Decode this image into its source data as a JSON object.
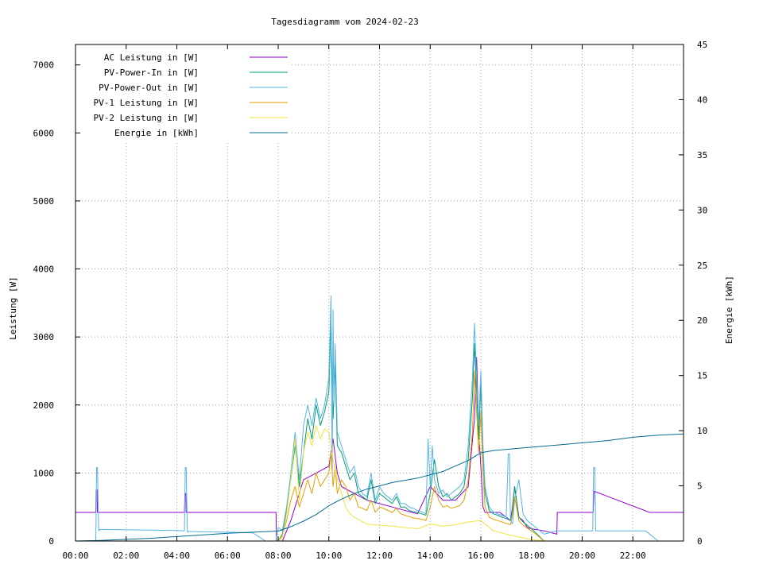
{
  "chart_data": {
    "type": "line",
    "title": "Tagesdiagramm vom 2024-02-23",
    "ylabel": "Leistung [W]",
    "y2label": "Energie [kWh]",
    "xlim": [
      "00:00",
      "24:00"
    ],
    "ylim": [
      0,
      7300
    ],
    "y2lim": [
      0,
      45
    ],
    "grid": true,
    "legend_position": "top-left",
    "x_ticks": [
      "00:00",
      "02:00",
      "04:00",
      "06:00",
      "08:00",
      "10:00",
      "12:00",
      "14:00",
      "16:00",
      "18:00",
      "20:00",
      "22:00"
    ],
    "y_ticks": [
      "0",
      "1000",
      "2000",
      "3000",
      "4000",
      "5000",
      "6000",
      "7000"
    ],
    "y2_ticks": [
      "0",
      "5",
      "10",
      "15",
      "20",
      "25",
      "30",
      "35",
      "40",
      "45"
    ],
    "series": [
      {
        "name": "AC Leistung in [W]",
        "color": "#9400d3",
        "axis": "left",
        "x": [
          "00:00",
          "00:48",
          "00:49",
          "00:51",
          "00:52",
          "03:00",
          "03:01",
          "04:18",
          "04:19",
          "04:21",
          "04:22",
          "06:30",
          "06:31",
          "07:55",
          "07:56",
          "08:10",
          "08:30",
          "09:00",
          "09:30",
          "10:00",
          "10:10",
          "10:20",
          "10:30",
          "11:00",
          "11:30",
          "12:00",
          "12:30",
          "13:00",
          "13:30",
          "14:00",
          "14:30",
          "15:00",
          "15:30",
          "15:45",
          "15:50",
          "15:55",
          "16:00",
          "16:05",
          "16:10",
          "16:20",
          "16:30",
          "16:45",
          "17:00",
          "17:10",
          "17:15",
          "17:20",
          "17:30",
          "17:40",
          "17:45",
          "17:50",
          "18:00",
          "18:30",
          "19:00",
          "19:01",
          "20:25",
          "20:26",
          "20:28",
          "20:29",
          "22:40",
          "22:41",
          "24:00"
        ],
        "y": [
          420,
          420,
          750,
          750,
          420,
          420,
          420,
          420,
          700,
          700,
          420,
          420,
          420,
          420,
          0,
          0,
          300,
          900,
          1000,
          1100,
          1500,
          1000,
          800,
          700,
          600,
          550,
          500,
          450,
          400,
          800,
          600,
          600,
          800,
          1800,
          2700,
          1600,
          1100,
          500,
          420,
          420,
          420,
          420,
          350,
          300,
          500,
          800,
          350,
          300,
          250,
          200,
          180,
          150,
          100,
          420,
          420,
          420,
          730,
          730,
          420,
          420,
          420
        ]
      },
      {
        "name": "PV-Power-In in [W]",
        "color": "#009e73",
        "axis": "left",
        "x": [
          "08:00",
          "08:10",
          "08:20",
          "08:30",
          "08:40",
          "08:50",
          "09:00",
          "09:10",
          "09:20",
          "09:30",
          "09:40",
          "09:50",
          "10:00",
          "10:05",
          "10:10",
          "10:15",
          "10:20",
          "10:30",
          "10:40",
          "10:50",
          "11:00",
          "11:10",
          "11:20",
          "11:30",
          "11:40",
          "11:50",
          "12:00",
          "12:10",
          "12:20",
          "12:30",
          "12:40",
          "12:50",
          "13:00",
          "13:10",
          "13:20",
          "13:30",
          "13:40",
          "13:50",
          "14:00",
          "14:10",
          "14:20",
          "14:30",
          "14:40",
          "14:50",
          "15:00",
          "15:10",
          "15:20",
          "15:30",
          "15:40",
          "15:45",
          "15:50",
          "15:55",
          "16:00",
          "16:05",
          "16:10",
          "16:20",
          "16:30",
          "16:40",
          "16:50",
          "17:00",
          "17:10",
          "17:15",
          "17:20",
          "17:30",
          "17:40",
          "17:50",
          "18:00",
          "18:10",
          "18:20",
          "18:30"
        ],
        "y": [
          0,
          100,
          450,
          900,
          1400,
          800,
          1300,
          1800,
          1500,
          2000,
          1700,
          1900,
          2200,
          3200,
          1800,
          2600,
          1400,
          1300,
          1100,
          900,
          1000,
          700,
          650,
          600,
          900,
          550,
          700,
          650,
          600,
          550,
          650,
          500,
          500,
          450,
          430,
          420,
          400,
          380,
          700,
          1200,
          800,
          650,
          700,
          600,
          650,
          700,
          800,
          1200,
          2100,
          2900,
          2200,
          1500,
          2300,
          1300,
          700,
          450,
          400,
          380,
          350,
          330,
          300,
          450,
          800,
          350,
          280,
          230,
          180,
          120,
          60,
          0
        ]
      },
      {
        "name": "PV-Power-Out in [W]",
        "color": "#56b4e9",
        "axis": "left",
        "x": [
          "00:00",
          "00:48",
          "00:50",
          "00:52",
          "00:55",
          "00:57",
          "01:00",
          "02:00",
          "03:00",
          "04:00",
          "04:18",
          "04:20",
          "04:22",
          "04:25",
          "04:27",
          "04:30",
          "05:00",
          "06:00",
          "06:30",
          "07:00",
          "07:30",
          "07:55",
          "08:00",
          "08:10",
          "08:20",
          "08:30",
          "08:40",
          "08:50",
          "09:00",
          "09:10",
          "09:20",
          "09:30",
          "09:40",
          "09:50",
          "10:00",
          "10:05",
          "10:08",
          "10:10",
          "10:12",
          "10:15",
          "10:20",
          "10:30",
          "10:40",
          "10:50",
          "11:00",
          "11:10",
          "11:20",
          "11:30",
          "11:40",
          "11:50",
          "12:00",
          "12:10",
          "12:20",
          "12:30",
          "12:40",
          "12:50",
          "13:00",
          "13:10",
          "13:20",
          "13:30",
          "13:40",
          "13:50",
          "13:55",
          "14:00",
          "14:05",
          "14:10",
          "14:20",
          "14:30",
          "14:40",
          "14:50",
          "15:00",
          "15:10",
          "15:20",
          "15:30",
          "15:40",
          "15:45",
          "15:50",
          "15:55",
          "16:00",
          "16:05",
          "16:10",
          "16:20",
          "16:30",
          "16:40",
          "16:50",
          "17:00",
          "17:05",
          "17:08",
          "17:10",
          "17:15",
          "17:20",
          "17:30",
          "17:40",
          "17:50",
          "18:00",
          "18:10",
          "18:20",
          "18:30",
          "19:00",
          "19:30",
          "20:00",
          "20:25",
          "20:27",
          "20:30",
          "20:32",
          "20:35",
          "21:00",
          "21:30",
          "22:00",
          "22:30",
          "23:00",
          "24:00"
        ],
        "y": [
          0,
          0,
          1080,
          1080,
          150,
          170,
          170,
          165,
          160,
          155,
          150,
          1080,
          1080,
          130,
          140,
          140,
          135,
          130,
          125,
          120,
          0,
          0,
          200,
          150,
          500,
          1000,
          1600,
          900,
          1700,
          2000,
          1700,
          2100,
          1800,
          2000,
          2400,
          3600,
          1000,
          3400,
          2000,
          2900,
          1600,
          1400,
          1200,
          1000,
          1100,
          800,
          700,
          650,
          1000,
          600,
          800,
          700,
          650,
          600,
          700,
          550,
          550,
          500,
          480,
          450,
          430,
          400,
          1500,
          800,
          1400,
          900,
          700,
          750,
          650,
          700,
          750,
          800,
          900,
          1400,
          2400,
          3200,
          2400,
          1700,
          2500,
          1400,
          800,
          500,
          430,
          400,
          380,
          350,
          1280,
          1280,
          300,
          250,
          600,
          900,
          400,
          300,
          250,
          200,
          150,
          100,
          150,
          150,
          150,
          150,
          1080,
          1080,
          150,
          150,
          150,
          150,
          150,
          150,
          0,
          0
        ]
      },
      {
        "name": "PV-1 Leistung in [W]",
        "color": "#e69f00",
        "axis": "left",
        "x": [
          "08:00",
          "08:10",
          "08:20",
          "08:30",
          "08:40",
          "08:50",
          "09:00",
          "09:10",
          "09:20",
          "09:30",
          "09:40",
          "09:50",
          "10:00",
          "10:05",
          "10:10",
          "10:15",
          "10:20",
          "10:30",
          "10:40",
          "10:50",
          "11:00",
          "11:10",
          "11:20",
          "11:30",
          "11:40",
          "11:50",
          "12:00",
          "12:10",
          "12:20",
          "12:30",
          "12:40",
          "12:50",
          "13:00",
          "13:10",
          "13:20",
          "13:30",
          "13:40",
          "13:50",
          "14:00",
          "14:10",
          "14:20",
          "14:30",
          "14:40",
          "14:50",
          "15:00",
          "15:10",
          "15:20",
          "15:30",
          "15:40",
          "15:45",
          "15:50",
          "15:55",
          "16:00",
          "16:05",
          "16:10",
          "16:20",
          "16:30",
          "16:40",
          "16:50",
          "17:00",
          "17:10",
          "17:15",
          "17:20",
          "17:30",
          "17:40",
          "17:50",
          "18:00",
          "18:10",
          "18:20",
          "18:30"
        ],
        "y": [
          0,
          80,
          300,
          600,
          800,
          500,
          700,
          900,
          700,
          1000,
          800,
          900,
          1000,
          1300,
          800,
          1100,
          700,
          900,
          800,
          600,
          700,
          500,
          480,
          450,
          600,
          420,
          500,
          480,
          450,
          420,
          480,
          400,
          380,
          360,
          340,
          330,
          320,
          300,
          500,
          800,
          600,
          500,
          520,
          480,
          500,
          520,
          600,
          900,
          1600,
          2500,
          1900,
          1300,
          1900,
          1000,
          500,
          350,
          320,
          300,
          280,
          260,
          240,
          380,
          650,
          300,
          230,
          190,
          150,
          100,
          50,
          0
        ]
      },
      {
        "name": "PV-2 Leistung in [W]",
        "color": "#f0e442",
        "axis": "left",
        "x": [
          "08:00",
          "08:10",
          "08:20",
          "08:30",
          "08:40",
          "08:50",
          "09:00",
          "09:10",
          "09:20",
          "09:30",
          "09:40",
          "09:50",
          "10:00",
          "10:10",
          "10:20",
          "10:30",
          "10:40",
          "10:50",
          "11:00",
          "11:30",
          "12:00",
          "12:30",
          "13:00",
          "13:30",
          "14:00",
          "14:30",
          "15:00",
          "15:30",
          "16:00",
          "16:30",
          "17:00",
          "17:30",
          "18:00",
          "18:30"
        ],
        "y": [
          0,
          50,
          400,
          900,
          1500,
          600,
          1300,
          1600,
          1400,
          1700,
          1500,
          1650,
          1600,
          1200,
          900,
          700,
          500,
          400,
          350,
          250,
          230,
          220,
          200,
          180,
          250,
          220,
          240,
          280,
          300,
          150,
          100,
          60,
          20,
          0
        ]
      },
      {
        "name": "Energie in [kWh]",
        "color": "#006b8f",
        "axis": "right",
        "x": [
          "00:00",
          "01:00",
          "02:00",
          "03:00",
          "04:00",
          "05:00",
          "06:00",
          "07:00",
          "08:00",
          "08:30",
          "09:00",
          "09:30",
          "10:00",
          "10:30",
          "11:00",
          "11:30",
          "12:00",
          "12:30",
          "13:00",
          "13:30",
          "14:00",
          "14:30",
          "15:00",
          "15:30",
          "16:00",
          "16:30",
          "17:00",
          "17:30",
          "18:00",
          "19:00",
          "20:00",
          "21:00",
          "22:00",
          "23:00",
          "24:00"
        ],
        "y": [
          0,
          0.05,
          0.15,
          0.25,
          0.4,
          0.55,
          0.7,
          0.8,
          0.9,
          1.3,
          1.8,
          2.4,
          3.2,
          3.8,
          4.3,
          4.7,
          5.0,
          5.3,
          5.5,
          5.7,
          6.0,
          6.3,
          6.8,
          7.3,
          8.0,
          8.2,
          8.3,
          8.4,
          8.5,
          8.7,
          8.9,
          9.1,
          9.4,
          9.6,
          9.7
        ]
      }
    ]
  }
}
